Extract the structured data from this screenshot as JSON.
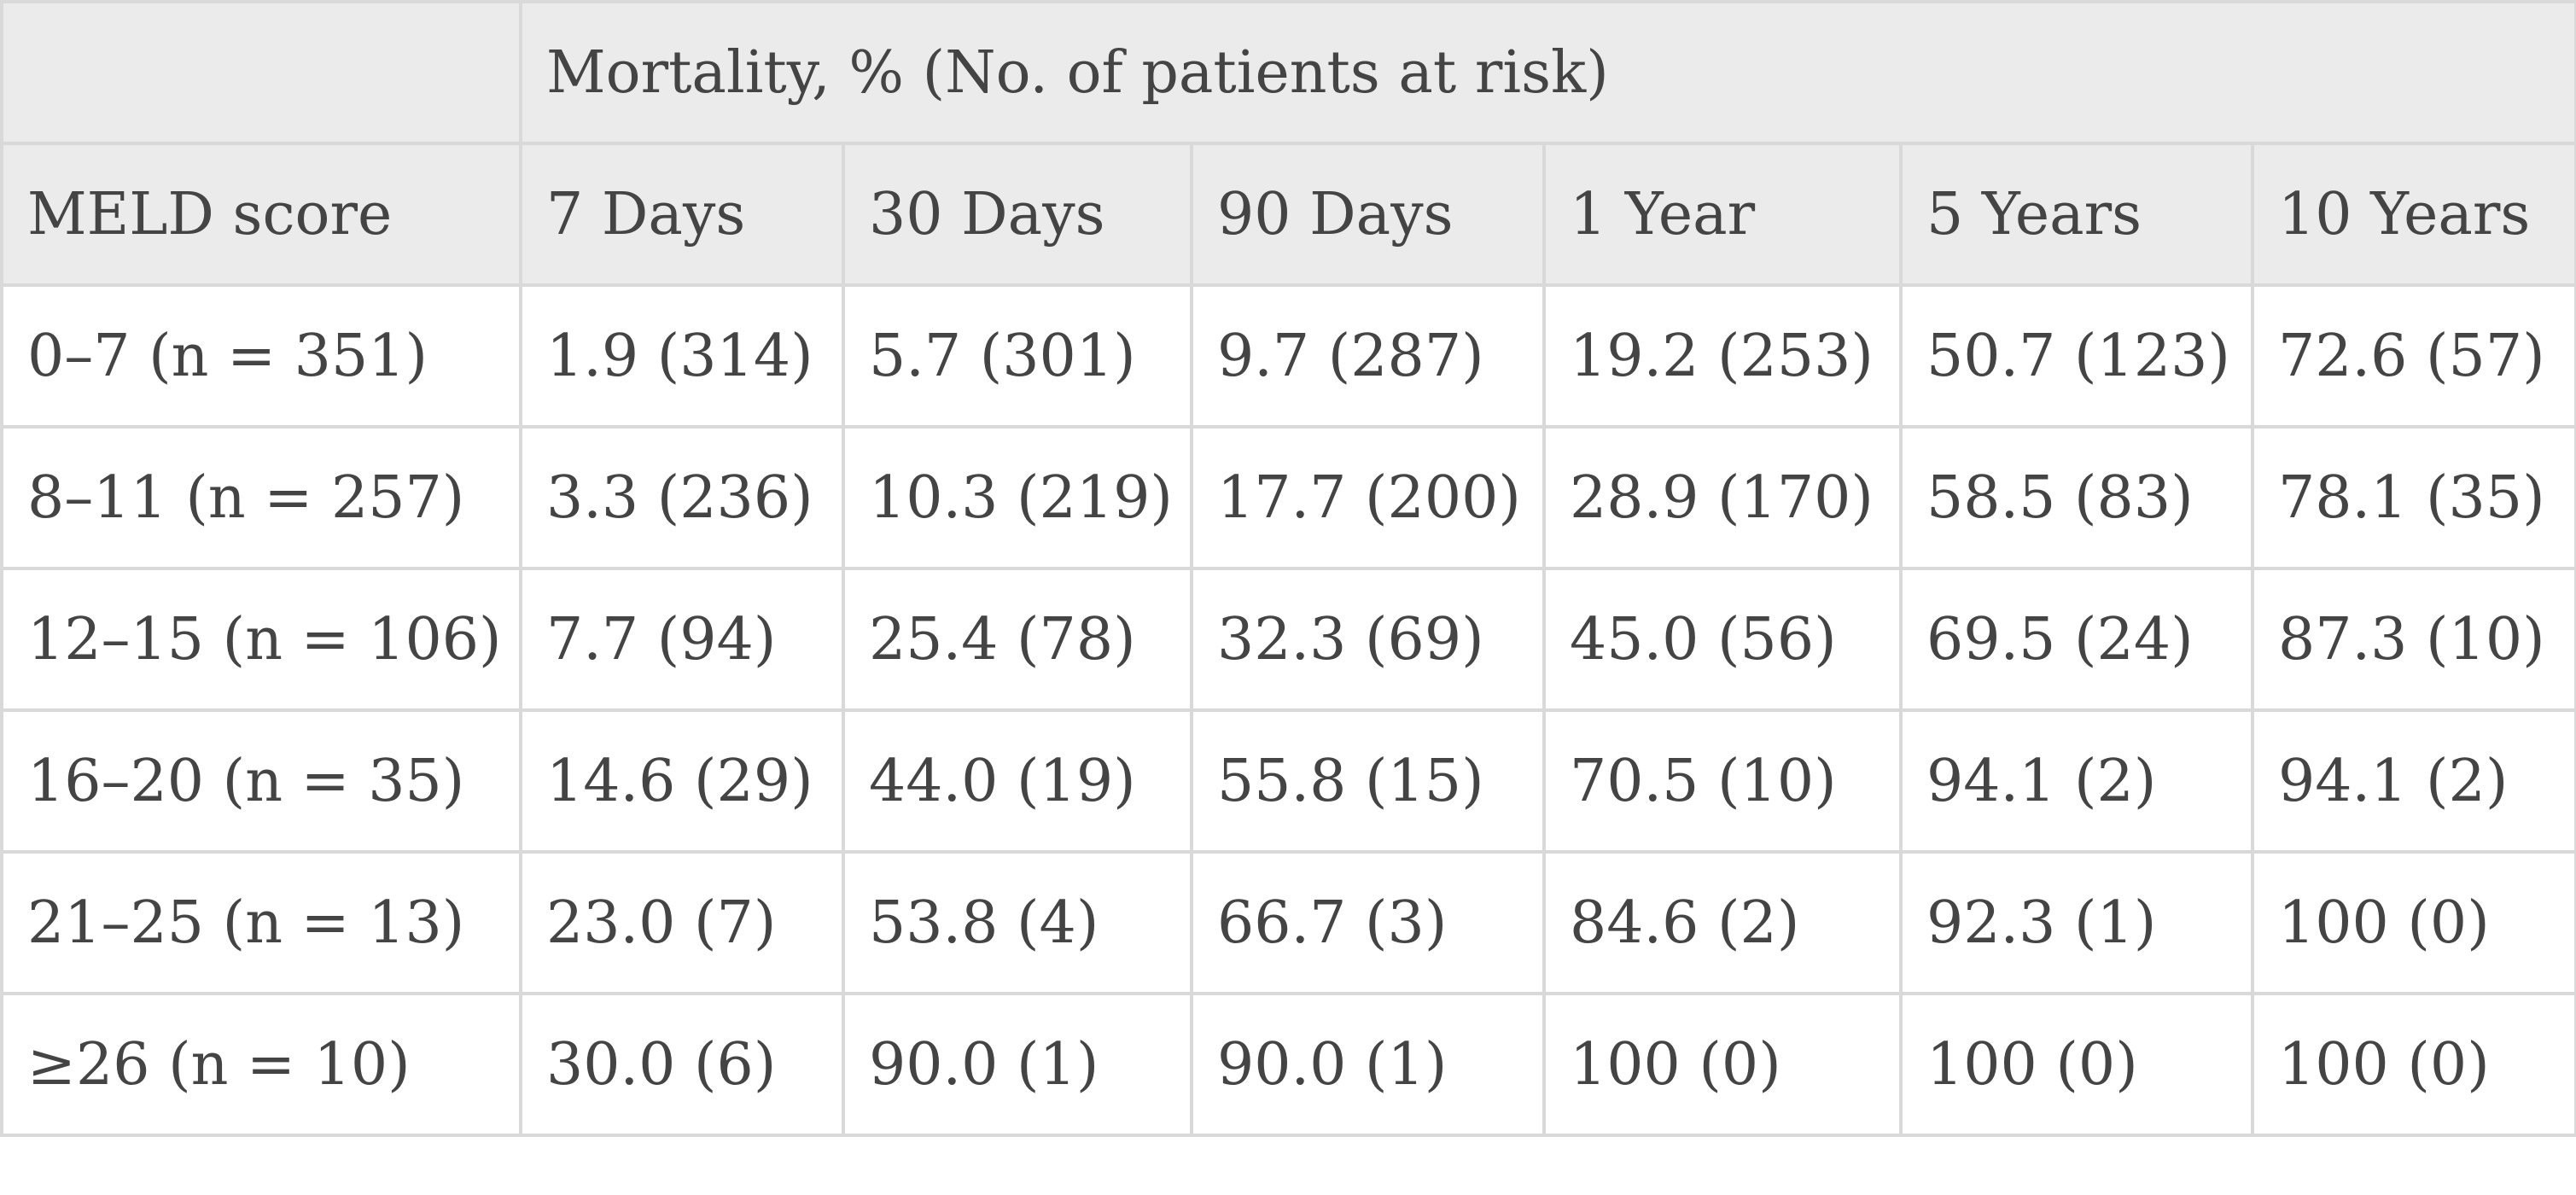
{
  "table": {
    "group_header": "Mortality, % (No. of patients at risk)",
    "columns": [
      "MELD score",
      "7 Days",
      "30 Days",
      "90 Days",
      "1 Year",
      "5 Years",
      "10 Years"
    ],
    "rows": [
      [
        "0–7 (n = 351)",
        "1.9 (314)",
        "5.7 (301)",
        "9.7 (287)",
        "19.2 (253)",
        "50.7 (123)",
        "72.6 (57)"
      ],
      [
        "8–11 (n = 257)",
        "3.3 (236)",
        "10.3 (219)",
        "17.7 (200)",
        "28.9 (170)",
        "58.5 (83)",
        "78.1 (35)"
      ],
      [
        "12–15 (n = 106)",
        "7.7 (94)",
        "25.4 (78)",
        "32.3 (69)",
        "45.0 (56)",
        "69.5 (24)",
        "87.3 (10)"
      ],
      [
        "16–20 (n = 35)",
        "14.6 (29)",
        "44.0 (19)",
        "55.8 (15)",
        "70.5 (10)",
        "94.1 (2)",
        "94.1 (2)"
      ],
      [
        "21–25 (n = 13)",
        "23.0 (7)",
        "53.8 (4)",
        "66.7 (3)",
        "84.6 (2)",
        "92.3 (1)",
        "100 (0)"
      ],
      [
        "≥26 (n = 10)",
        "30.0 (6)",
        "90.0 (1)",
        "90.0 (1)",
        "100 (0)",
        "100 (0)",
        "100 (0)"
      ]
    ]
  },
  "colors": {
    "header_background": "#ebebeb",
    "body_background": "#ffffff",
    "grid_line": "#d9d9d9",
    "text": "#444444"
  }
}
